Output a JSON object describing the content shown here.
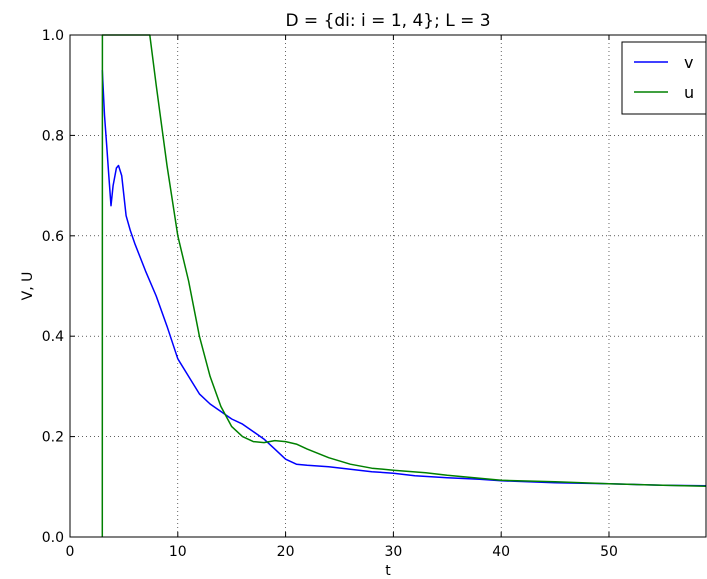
{
  "chart_data": {
    "type": "line",
    "title": "D = {di: i = 1, 4}; L = 3",
    "xlabel": "t",
    "ylabel": "V, U",
    "xlim": [
      0,
      59
    ],
    "ylim": [
      0.0,
      1.0
    ],
    "x_ticks": [
      0,
      10,
      20,
      30,
      40,
      50
    ],
    "y_ticks": [
      0.0,
      0.2,
      0.4,
      0.6,
      0.8,
      1.0
    ],
    "x_tick_labels": [
      "0",
      "10",
      "20",
      "30",
      "40",
      "50"
    ],
    "y_tick_labels": [
      "0.0",
      "0.2",
      "0.4",
      "0.6",
      "0.8",
      "1.0"
    ],
    "grid": true,
    "legend_position": "top-right",
    "series": [
      {
        "name": "v",
        "color": "#0000ff",
        "points": [
          [
            3.0,
            0.93
          ],
          [
            3.2,
            0.84
          ],
          [
            3.4,
            0.78
          ],
          [
            3.6,
            0.72
          ],
          [
            3.8,
            0.66
          ],
          [
            4.0,
            0.7
          ],
          [
            4.3,
            0.735
          ],
          [
            4.5,
            0.74
          ],
          [
            4.8,
            0.72
          ],
          [
            5.2,
            0.64
          ],
          [
            5.6,
            0.61
          ],
          [
            6.0,
            0.585
          ],
          [
            7.0,
            0.53
          ],
          [
            8.0,
            0.48
          ],
          [
            9.0,
            0.42
          ],
          [
            10.0,
            0.355
          ],
          [
            11.0,
            0.32
          ],
          [
            12.0,
            0.285
          ],
          [
            13.0,
            0.265
          ],
          [
            14.0,
            0.25
          ],
          [
            15.0,
            0.235
          ],
          [
            16.0,
            0.225
          ],
          [
            17.0,
            0.21
          ],
          [
            18.0,
            0.195
          ],
          [
            19.0,
            0.175
          ],
          [
            20.0,
            0.155
          ],
          [
            21.0,
            0.145
          ],
          [
            22.0,
            0.143
          ],
          [
            24.0,
            0.14
          ],
          [
            26.0,
            0.135
          ],
          [
            28.0,
            0.13
          ],
          [
            30.0,
            0.127
          ],
          [
            32.0,
            0.122
          ],
          [
            35.0,
            0.118
          ],
          [
            38.0,
            0.115
          ],
          [
            40.0,
            0.112
          ],
          [
            45.0,
            0.108
          ],
          [
            50.0,
            0.106
          ],
          [
            55.0,
            0.103
          ],
          [
            59.0,
            0.102
          ]
        ]
      },
      {
        "name": "u",
        "color": "#008000",
        "points": [
          [
            3.0,
            0.0
          ],
          [
            3.01,
            1.0
          ],
          [
            7.4,
            1.0
          ],
          [
            8.0,
            0.9
          ],
          [
            9.0,
            0.74
          ],
          [
            10.0,
            0.6
          ],
          [
            11.0,
            0.51
          ],
          [
            12.0,
            0.4
          ],
          [
            13.0,
            0.32
          ],
          [
            14.0,
            0.26
          ],
          [
            15.0,
            0.22
          ],
          [
            16.0,
            0.2
          ],
          [
            17.0,
            0.19
          ],
          [
            18.0,
            0.188
          ],
          [
            19.0,
            0.192
          ],
          [
            20.0,
            0.19
          ],
          [
            21.0,
            0.185
          ],
          [
            22.0,
            0.175
          ],
          [
            24.0,
            0.158
          ],
          [
            26.0,
            0.145
          ],
          [
            28.0,
            0.137
          ],
          [
            30.0,
            0.133
          ],
          [
            33.0,
            0.128
          ],
          [
            35.0,
            0.123
          ],
          [
            38.0,
            0.117
          ],
          [
            40.0,
            0.113
          ],
          [
            45.0,
            0.11
          ],
          [
            50.0,
            0.106
          ],
          [
            55.0,
            0.103
          ],
          [
            59.0,
            0.101
          ]
        ]
      }
    ]
  }
}
